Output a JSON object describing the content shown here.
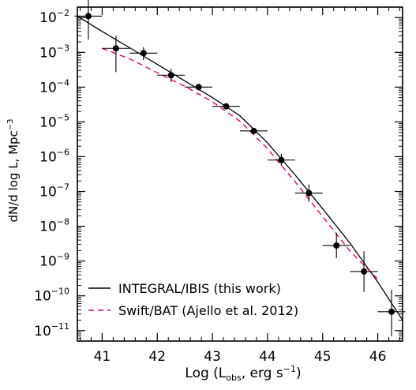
{
  "chart_data": {
    "type": "scatter",
    "xlabel_main": "Log (L",
    "xlabel_sub": "obs",
    "xlabel_tail": ", erg s",
    "xlabel_exp": "−1",
    "xlabel_close": ")",
    "ylabel_main": "dN/d log L, Mpc",
    "ylabel_exp": "−3",
    "xlim": [
      40.55,
      46.45
    ],
    "ylim_log10": [
      -11.3,
      -1.7
    ],
    "x_ticks": [
      "41",
      "42",
      "43",
      "44",
      "45",
      "46"
    ],
    "y_ticks": [
      {
        "exp": -2,
        "label_base": "10",
        "label_exp": "−2"
      },
      {
        "exp": -3,
        "label_base": "10",
        "label_exp": "−3"
      },
      {
        "exp": -4,
        "label_base": "10",
        "label_exp": "−4"
      },
      {
        "exp": -5,
        "label_base": "10",
        "label_exp": "−5"
      },
      {
        "exp": -6,
        "label_base": "10",
        "label_exp": "−6"
      },
      {
        "exp": -7,
        "label_base": "10",
        "label_exp": "−7"
      },
      {
        "exp": -8,
        "label_base": "10",
        "label_exp": "−8"
      },
      {
        "exp": -9,
        "label_base": "10",
        "label_exp": "−9"
      },
      {
        "exp": -10,
        "label_base": "10",
        "label_exp": "−10"
      },
      {
        "exp": -11,
        "label_base": "10",
        "label_exp": "−11"
      }
    ],
    "points": [
      {
        "x": 40.75,
        "y": 0.011,
        "xerr": [
          0.25,
          0.25
        ],
        "yerr": [
          0.0023,
          0.035
        ]
      },
      {
        "x": 41.25,
        "y": 0.0013,
        "xerr": [
          0.25,
          0.25
        ],
        "yerr": [
          0.00027,
          0.003
        ]
      },
      {
        "x": 41.75,
        "y": 0.00095,
        "xerr": [
          0.25,
          0.25
        ],
        "yerr": [
          0.0006,
          0.0014
        ]
      },
      {
        "x": 42.25,
        "y": 0.00022,
        "xerr": [
          0.25,
          0.25
        ],
        "yerr": [
          0.00014,
          0.00034
        ]
      },
      {
        "x": 42.75,
        "y": 0.0001,
        "xerr": [
          0.25,
          0.25
        ],
        "yerr": [
          8e-05,
          0.000125
        ]
      },
      {
        "x": 43.25,
        "y": 2.8e-05,
        "xerr": [
          0.25,
          0.25
        ],
        "yerr": [
          2.4e-05,
          3.3e-05
        ]
      },
      {
        "x": 43.75,
        "y": 5.5e-06,
        "xerr": [
          0.25,
          0.25
        ],
        "yerr": [
          4.8e-06,
          6.3e-06
        ]
      },
      {
        "x": 44.25,
        "y": 8e-07,
        "xerr": [
          0.25,
          0.25
        ],
        "yerr": [
          5.5e-07,
          1.2e-06
        ]
      },
      {
        "x": 44.75,
        "y": 9e-08,
        "xerr": [
          0.25,
          0.25
        ],
        "yerr": [
          5e-08,
          1.6e-07
        ]
      },
      {
        "x": 45.25,
        "y": 2.8e-09,
        "xerr": [
          0.25,
          0.25
        ],
        "yerr": [
          1.2e-09,
          6.5e-09
        ]
      },
      {
        "x": 45.75,
        "y": 5e-10,
        "xerr": [
          0.25,
          0.25
        ],
        "yerr": [
          1.3e-10,
          1.9e-09
        ]
      },
      {
        "x": 46.25,
        "y": 3.5e-11,
        "xerr": [
          0.25,
          0.25
        ],
        "yerr": [
          7e-12,
          1.5e-10
        ]
      }
    ],
    "series": [
      {
        "name": "INTEGRAL/IBIS (this work)",
        "style": "solid",
        "color": "#000000",
        "x": [
          40.55,
          41.0,
          41.5,
          42.0,
          42.5,
          43.0,
          43.5,
          44.0,
          44.5,
          45.0,
          45.5,
          46.0,
          46.45
        ],
        "y": [
          0.011,
          0.004,
          0.00135,
          0.00045,
          0.00015,
          5e-05,
          1.5e-05,
          2.5e-06,
          3e-07,
          3.2e-08,
          3.2e-09,
          2.5e-10,
          2e-11
        ]
      },
      {
        "name": "Swift/BAT (Ajello et al. 2012)",
        "style": "dashed",
        "color": "#e0007a",
        "x": [
          41.0,
          41.5,
          42.0,
          42.5,
          43.0,
          43.5,
          44.0,
          44.5,
          45.0,
          45.5,
          46.0
        ],
        "y": [
          0.0013,
          0.00065,
          0.00026,
          0.000105,
          3.8e-05,
          1.05e-05,
          1.7e-06,
          1.9e-07,
          1.9e-08,
          1.9e-09,
          3e-10
        ]
      }
    ],
    "legend": {
      "position": "bottom-left",
      "entries": [
        {
          "label": "INTEGRAL/IBIS (this work)",
          "style": "solid",
          "color": "#000000"
        },
        {
          "label": "Swift/BAT (Ajello et al. 2012)",
          "style": "dashed",
          "color": "#e0007a"
        }
      ]
    }
  }
}
